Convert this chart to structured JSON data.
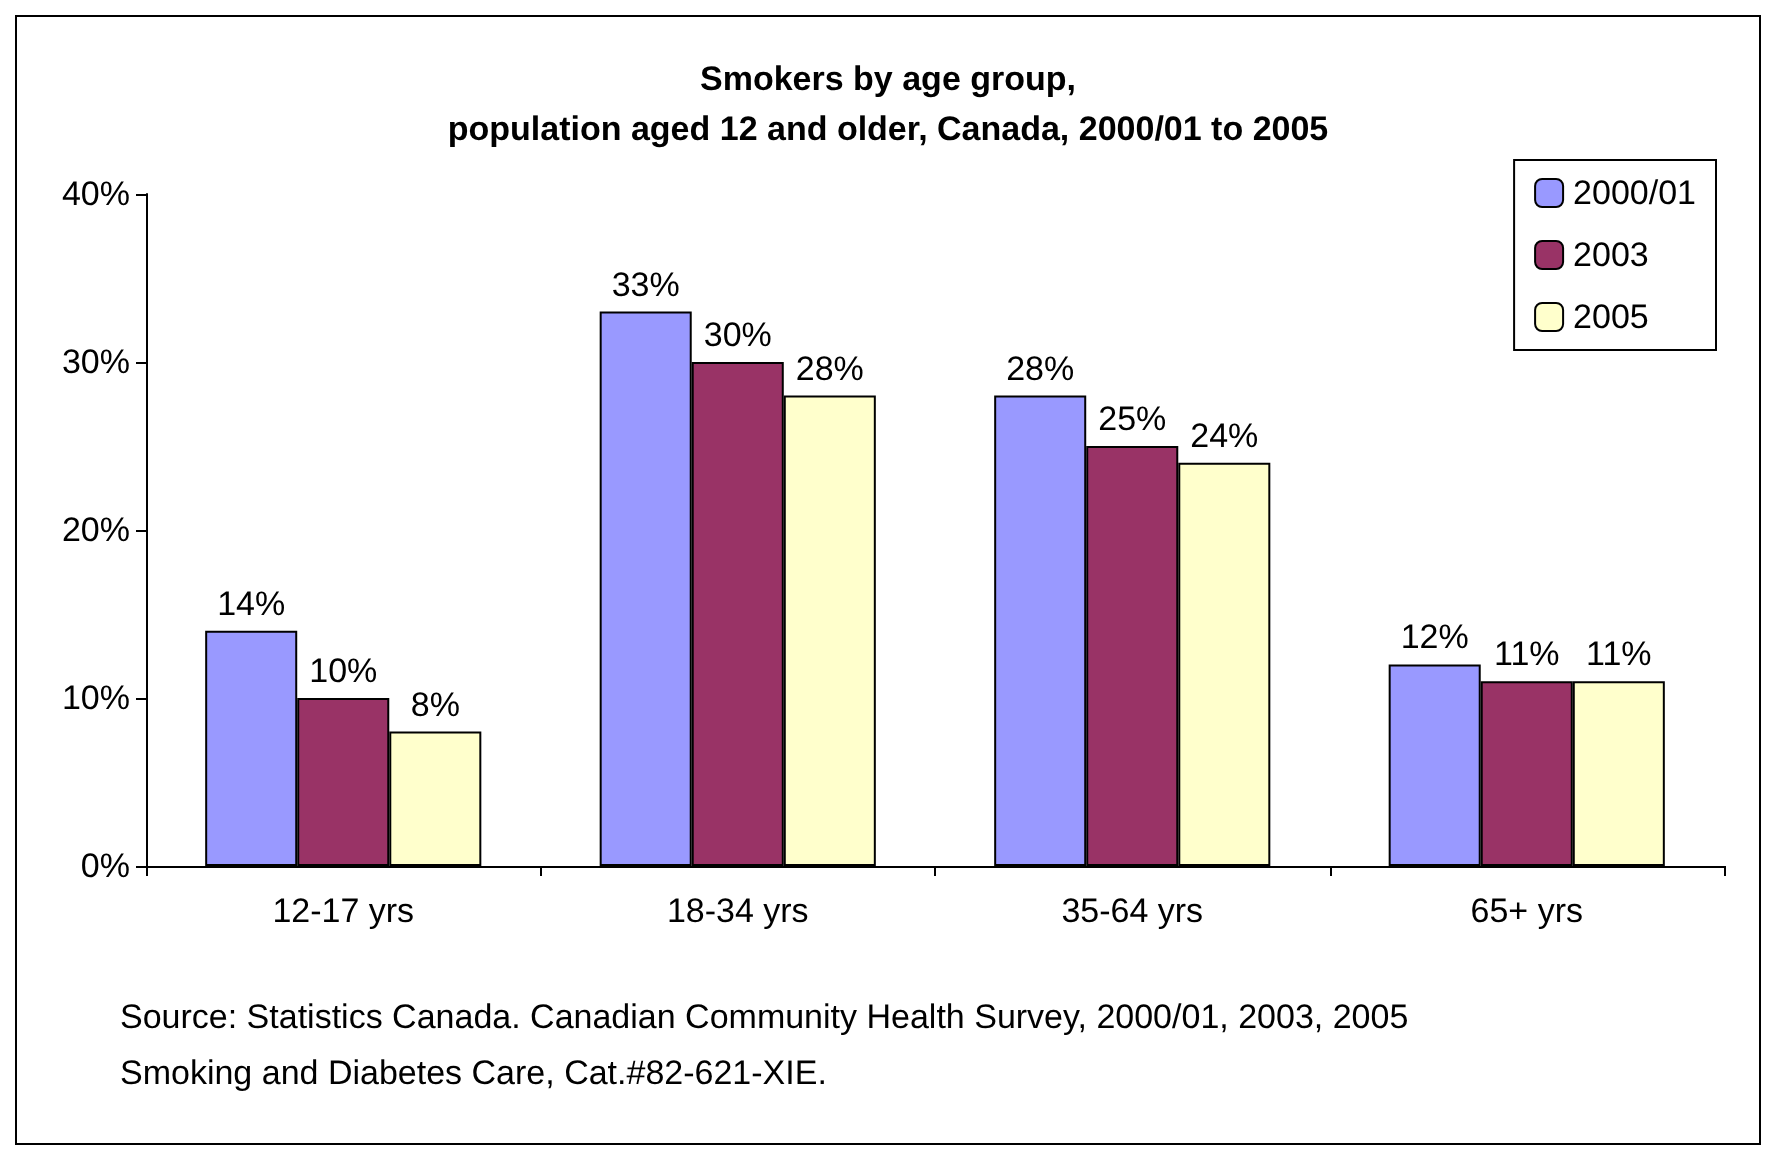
{
  "chart_data": {
    "type": "bar",
    "title": "Smokers by age group,\npopulation aged 12 and older, Canada, 2000/01 to 2005",
    "categories": [
      "12-17 yrs",
      "18-34 yrs",
      "35-64 yrs",
      "65+ yrs"
    ],
    "series": [
      {
        "name": "2000/01",
        "color": "#9999ff",
        "values": [
          14,
          33,
          28,
          12
        ],
        "value_labels": [
          "14%",
          "33%",
          "28%",
          "12%"
        ]
      },
      {
        "name": "2003",
        "color": "#993366",
        "values": [
          10,
          30,
          25,
          11
        ],
        "value_labels": [
          "10%",
          "30%",
          "25%",
          "11%"
        ]
      },
      {
        "name": "2005",
        "color": "#ffffcc",
        "values": [
          8,
          28,
          24,
          11
        ],
        "value_labels": [
          "8%",
          "28%",
          "24%",
          "11%"
        ]
      }
    ],
    "ylim": [
      0,
      40
    ],
    "yticks": [
      {
        "value": 0,
        "label": "0%"
      },
      {
        "value": 10,
        "label": "10%"
      },
      {
        "value": 20,
        "label": "20%"
      },
      {
        "value": 30,
        "label": "30%"
      },
      {
        "value": 40,
        "label": "40%"
      }
    ],
    "grid": false,
    "legend": "top right",
    "annotations": [
      "Source: Statistics Canada. Canadian Community Health Survey, 2000/01, 2003, 2005",
      "Smoking and Diabetes Care, Cat.#82-621-XIE."
    ]
  }
}
